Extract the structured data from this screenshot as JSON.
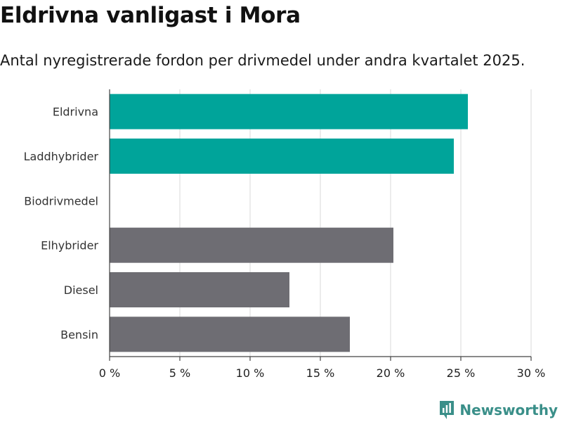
{
  "header": {
    "title": "Eldrivna vanligast i Mora",
    "subtitle": "Antal nyregistrerade fordon per drivmedel under andra kvartalet 2025."
  },
  "brand": {
    "name": "Newsworthy",
    "icon": "newsworthy-logo-icon",
    "color": "#3a8f89"
  },
  "chart_data": {
    "type": "bar",
    "orientation": "horizontal",
    "title": "Eldrivna vanligast i Mora",
    "subtitle": "Antal nyregistrerade fordon per drivmedel under andra kvartalet 2025.",
    "categories": [
      "Eldrivna",
      "Laddhybrider",
      "Biodrivmedel",
      "Elhybrider",
      "Diesel",
      "Bensin"
    ],
    "values": [
      25.5,
      24.5,
      0,
      20.2,
      12.8,
      17.1
    ],
    "unit": "%",
    "xlabel": "",
    "ylabel": "",
    "xlim": [
      0,
      30
    ],
    "ticks": [
      0,
      5,
      10,
      15,
      20,
      25,
      30
    ],
    "tick_labels": [
      "0 %",
      "5 %",
      "10 %",
      "15 %",
      "20 %",
      "25 %",
      "30 %"
    ],
    "colors": {
      "highlight": "#00a49a",
      "default": "#6e6d73",
      "grid": "#e0e0e0",
      "axis": "#444444"
    },
    "highlighted": [
      "Eldrivna",
      "Laddhybrider"
    ],
    "grid": true,
    "legend": "none"
  }
}
